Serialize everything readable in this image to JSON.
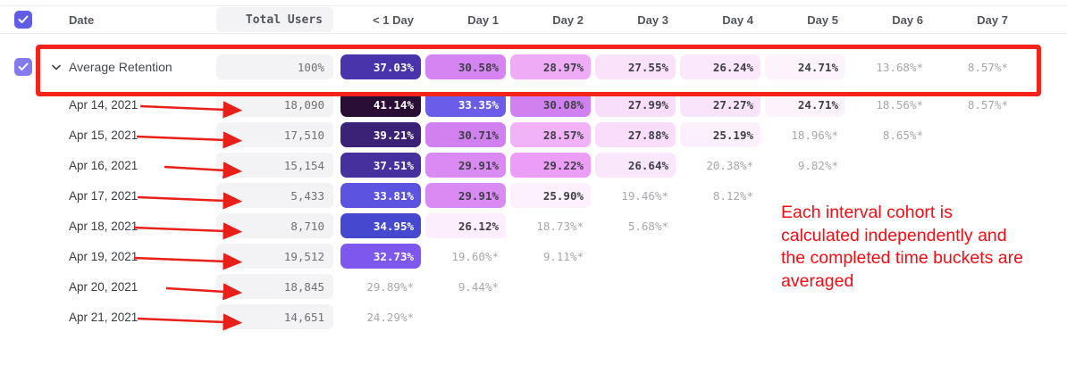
{
  "header": {
    "columns": [
      "Date",
      "Total Users",
      "< 1 Day",
      "Day 1",
      "Day 2",
      "Day 3",
      "Day 4",
      "Day 5",
      "Day 6",
      "Day 7"
    ]
  },
  "colors": {
    "checkbox_header": "#615de6",
    "checkbox_row": "#837af0",
    "highlight_box": "#f4241c",
    "arrow": "#e82019",
    "note_text": "#fa0a12",
    "cell_text_dark": "#3f3f46",
    "cell_text_light": "#ffffff",
    "cell_text_muted": "#a7a7ac"
  },
  "rows": [
    {
      "label": "Average Retention",
      "is_average": true,
      "checked": true,
      "total": "100%",
      "cells": [
        {
          "value": "37.03%",
          "bg": "#4a34ac",
          "fg": "#ffffff"
        },
        {
          "value": "30.58%",
          "bg": "#d584f1",
          "fg": "#3f3f46"
        },
        {
          "value": "28.97%",
          "bg": "#f0abf7",
          "fg": "#3f3f46"
        },
        {
          "value": "27.55%",
          "bg": "#fae2fb",
          "fg": "#3f3f46"
        },
        {
          "value": "26.24%",
          "bg": "#fbe8fc",
          "fg": "#3f3f46"
        },
        {
          "value": "24.71%",
          "bg": "#fdf3fd",
          "fg": "#3f3f46"
        },
        {
          "value": "13.68%*",
          "bg": null,
          "fg": "#a7a7ac"
        },
        {
          "value": "8.57%*",
          "bg": null,
          "fg": "#a7a7ac"
        }
      ]
    },
    {
      "label": "Apr 14, 2021",
      "total": "18,090",
      "cells": [
        {
          "value": "41.14%",
          "bg": "#2b0e35",
          "fg": "#ffffff"
        },
        {
          "value": "33.35%",
          "bg": "#6a5ee8",
          "fg": "#ffffff"
        },
        {
          "value": "30.08%",
          "bg": "#d180f0",
          "fg": "#3f3f46"
        },
        {
          "value": "27.99%",
          "bg": "#f9defb",
          "fg": "#3f3f46"
        },
        {
          "value": "27.27%",
          "bg": "#fae4fb",
          "fg": "#3f3f46"
        },
        {
          "value": "24.71%",
          "bg": "#fdf3fd",
          "fg": "#3f3f46"
        },
        {
          "value": "18.56%*",
          "bg": null,
          "fg": "#a7a7ac"
        },
        {
          "value": "8.57%*",
          "bg": null,
          "fg": "#a7a7ac"
        }
      ]
    },
    {
      "label": "Apr 15, 2021",
      "total": "17,510",
      "cells": [
        {
          "value": "39.21%",
          "bg": "#3b2277",
          "fg": "#ffffff"
        },
        {
          "value": "30.71%",
          "bg": "#d180f0",
          "fg": "#3f3f46"
        },
        {
          "value": "28.57%",
          "bg": "#f1b2f8",
          "fg": "#3f3f46"
        },
        {
          "value": "27.88%",
          "bg": "#f9ddfb",
          "fg": "#3f3f46"
        },
        {
          "value": "25.19%",
          "bg": "#fcf0fd",
          "fg": "#3f3f46"
        },
        {
          "value": "18.96%*",
          "bg": null,
          "fg": "#a7a7ac"
        },
        {
          "value": "8.65%*",
          "bg": null,
          "fg": "#a7a7ac"
        }
      ]
    },
    {
      "label": "Apr 16, 2021",
      "total": "15,154",
      "cells": [
        {
          "value": "37.51%",
          "bg": "#45309e",
          "fg": "#ffffff"
        },
        {
          "value": "29.91%",
          "bg": "#d98bf3",
          "fg": "#3f3f46"
        },
        {
          "value": "29.22%",
          "bg": "#ec9df6",
          "fg": "#3f3f46"
        },
        {
          "value": "26.64%",
          "bg": "#fbe7fc",
          "fg": "#3f3f46"
        },
        {
          "value": "20.38%*",
          "bg": null,
          "fg": "#a7a7ac"
        },
        {
          "value": "9.82%*",
          "bg": null,
          "fg": "#a7a7ac"
        }
      ]
    },
    {
      "label": "Apr 17, 2021",
      "total": "5,433",
      "cells": [
        {
          "value": "33.81%",
          "bg": "#5c54e1",
          "fg": "#ffffff"
        },
        {
          "value": "29.91%",
          "bg": "#d98bf3",
          "fg": "#3f3f46"
        },
        {
          "value": "25.90%",
          "bg": "#fcf1fd",
          "fg": "#3f3f46"
        },
        {
          "value": "19.46%*",
          "bg": null,
          "fg": "#a7a7ac"
        },
        {
          "value": "8.12%*",
          "bg": null,
          "fg": "#a7a7ac"
        }
      ]
    },
    {
      "label": "Apr 18, 2021",
      "total": "8,710",
      "cells": [
        {
          "value": "34.95%",
          "bg": "#4648d0",
          "fg": "#ffffff"
        },
        {
          "value": "26.12%",
          "bg": "#fceefd",
          "fg": "#3f3f46"
        },
        {
          "value": "18.73%*",
          "bg": null,
          "fg": "#a7a7ac"
        },
        {
          "value": "5.68%*",
          "bg": null,
          "fg": "#a7a7ac"
        }
      ]
    },
    {
      "label": "Apr 19, 2021",
      "total": "19,512",
      "cells": [
        {
          "value": "32.73%",
          "bg": "#7e58ee",
          "fg": "#ffffff"
        },
        {
          "value": "19.60%*",
          "bg": null,
          "fg": "#a7a7ac"
        },
        {
          "value": "9.11%*",
          "bg": null,
          "fg": "#a7a7ac"
        }
      ]
    },
    {
      "label": "Apr 20, 2021",
      "total": "18,845",
      "cells": [
        {
          "value": "29.89%*",
          "bg": null,
          "fg": "#a7a7ac"
        },
        {
          "value": "9.44%*",
          "bg": null,
          "fg": "#a7a7ac"
        }
      ]
    },
    {
      "label": "Apr 21, 2021",
      "total": "14,651",
      "cells": [
        {
          "value": "24.29%*",
          "bg": null,
          "fg": "#a7a7ac"
        }
      ]
    }
  ],
  "annotations": {
    "note_lines": [
      "Each interval cohort is",
      "calculated independently and",
      "the completed time buckets are",
      "averaged"
    ]
  }
}
